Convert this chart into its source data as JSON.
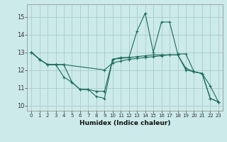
{
  "xlabel": "Humidex (Indice chaleur)",
  "background_color": "#cceaea",
  "grid_color": "#aacccc",
  "line_color": "#1a6b5a",
  "xlim": [
    -0.5,
    23.5
  ],
  "ylim": [
    9.7,
    15.7
  ],
  "yticks": [
    10,
    11,
    12,
    13,
    14,
    15
  ],
  "xticks": [
    0,
    1,
    2,
    3,
    4,
    5,
    6,
    7,
    8,
    9,
    10,
    11,
    12,
    13,
    14,
    15,
    16,
    17,
    18,
    19,
    20,
    21,
    22,
    23
  ],
  "series1_x": [
    0,
    1,
    2,
    3,
    4,
    5,
    6,
    7,
    8,
    9,
    10,
    11,
    12,
    13,
    14,
    15,
    16,
    17,
    18,
    19,
    20,
    21,
    22,
    23
  ],
  "series1_y": [
    13.0,
    12.6,
    12.3,
    12.3,
    11.6,
    11.3,
    10.9,
    10.9,
    10.5,
    10.4,
    12.6,
    12.7,
    12.7,
    14.2,
    15.2,
    13.0,
    14.7,
    14.7,
    12.9,
    12.9,
    11.9,
    11.8,
    11.1,
    10.2
  ],
  "series2_x": [
    0,
    1,
    2,
    3,
    4,
    5,
    6,
    7,
    8,
    9,
    10,
    11,
    12,
    13,
    14,
    15,
    16,
    17,
    18,
    19,
    20,
    21,
    22,
    23
  ],
  "series2_y": [
    13.0,
    12.6,
    12.3,
    12.3,
    12.3,
    11.3,
    10.9,
    10.9,
    10.8,
    10.8,
    12.6,
    12.65,
    12.7,
    12.75,
    12.8,
    12.85,
    12.85,
    12.85,
    12.85,
    12.0,
    11.9,
    11.8,
    10.4,
    10.2
  ],
  "series3_x": [
    0,
    1,
    2,
    3,
    4,
    9,
    10,
    11,
    12,
    13,
    14,
    15,
    16,
    17,
    18,
    19,
    20,
    21,
    22,
    23
  ],
  "series3_y": [
    13.0,
    12.6,
    12.3,
    12.3,
    12.3,
    12.0,
    12.4,
    12.5,
    12.6,
    12.65,
    12.7,
    12.75,
    12.8,
    12.85,
    12.85,
    12.1,
    11.9,
    11.8,
    10.4,
    10.2
  ]
}
